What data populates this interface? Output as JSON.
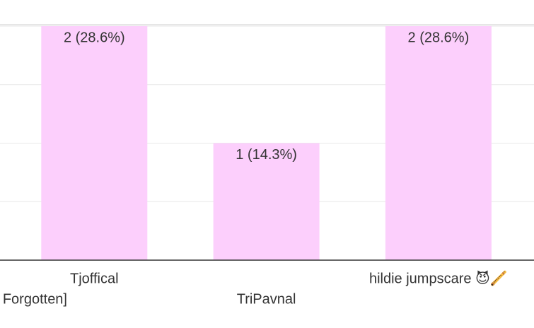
{
  "chart_data": {
    "type": "bar",
    "categories": [
      "Forgotten]",
      "Tjoffical",
      "TriPavnal",
      "hildie jumpscare 😈🪈"
    ],
    "values": [
      null,
      2,
      1,
      2
    ],
    "value_labels": [
      null,
      "2 (28.6%)",
      "1 (14.3%)",
      "2 (28.6%)"
    ],
    "color": "#fccffc",
    "ylim": [
      0,
      2
    ],
    "yticks": [
      0,
      0.5,
      1,
      1.5,
      2
    ],
    "grid": true
  }
}
